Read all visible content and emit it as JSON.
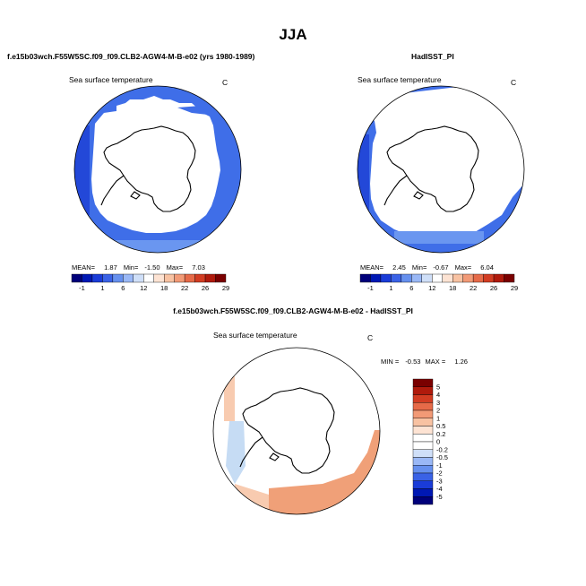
{
  "figure": {
    "title": "JJA",
    "left_heading": "f.e15b03wch.F55W5SC.f09_f09.CLB2-AGW4-M-B-e02 (yrs 1980-1989)",
    "right_heading": "HadISST_PI",
    "diff_heading": "f.e15b03wch.F55W5SC.f09_f09.CLB2-AGW4-M-B-e02 - HadISST_PI"
  },
  "colors": {
    "land": "#ffffff",
    "coast": "#000000",
    "ocean_main": "#3f6ee8",
    "ocean_deep": "#2348d8",
    "ocean_light": "#6a96f0",
    "diff_warm": "#f0a078",
    "diff_warm_light": "#f8cbb0",
    "diff_cool": "#c6dcf4"
  },
  "chart_data": [
    {
      "type": "polar-map",
      "name": "model",
      "title": "Sea surface temperature",
      "units": "C",
      "stats": {
        "mean_label": "MEAN=",
        "mean": "1.87",
        "min_label": "Min=",
        "min": "-1.50",
        "max_label": "Max=",
        "max": "7.03"
      },
      "colorbar": {
        "labels": [
          "-1",
          "1",
          "6",
          "12",
          "18",
          "22",
          "26",
          "29"
        ],
        "colors": [
          "#00007a",
          "#0018b4",
          "#1a3cd8",
          "#3a62e6",
          "#6690ee",
          "#9ab8f6",
          "#cfdff8",
          "#ffffff",
          "#fde3d3",
          "#f8c2a2",
          "#f29a76",
          "#e66a48",
          "#d23c22",
          "#b01a0c",
          "#7a0000"
        ]
      }
    },
    {
      "type": "polar-map",
      "name": "observed",
      "title": "Sea surface temperature",
      "units": "C",
      "stats": {
        "mean_label": "MEAN=",
        "mean": "2.45",
        "min_label": "Min=",
        "min": "-0.67",
        "max_label": "Max=",
        "max": "6.04"
      },
      "colorbar": {
        "labels": [
          "-1",
          "1",
          "6",
          "12",
          "18",
          "22",
          "26",
          "29"
        ],
        "colors": [
          "#00007a",
          "#0018b4",
          "#1a3cd8",
          "#3a62e6",
          "#6690ee",
          "#9ab8f6",
          "#cfdff8",
          "#ffffff",
          "#fde3d3",
          "#f8c2a2",
          "#f29a76",
          "#e66a48",
          "#d23c22",
          "#b01a0c",
          "#7a0000"
        ]
      }
    },
    {
      "type": "polar-map",
      "name": "difference",
      "title": "Sea surface temperature",
      "units": "C",
      "stats": {
        "min_label": "MIN =",
        "min": "-0.53",
        "max_label": "MAX =",
        "max": "1.26"
      },
      "colorbar": {
        "labels": [
          "5",
          "4",
          "3",
          "2",
          "1",
          "0.5",
          "0.2",
          "0",
          "-0.2",
          "-0.5",
          "-1",
          "-2",
          "-3",
          "-4",
          "-5"
        ],
        "colors": [
          "#7a0000",
          "#b01a0c",
          "#d23c22",
          "#e66a48",
          "#f29a76",
          "#f8c2a2",
          "#fde3d3",
          "#ffffff",
          "#ffffff",
          "#cfdff8",
          "#9ab8f6",
          "#6690ee",
          "#3a62e6",
          "#1a3cd8",
          "#0018b4",
          "#00007a"
        ]
      }
    }
  ]
}
